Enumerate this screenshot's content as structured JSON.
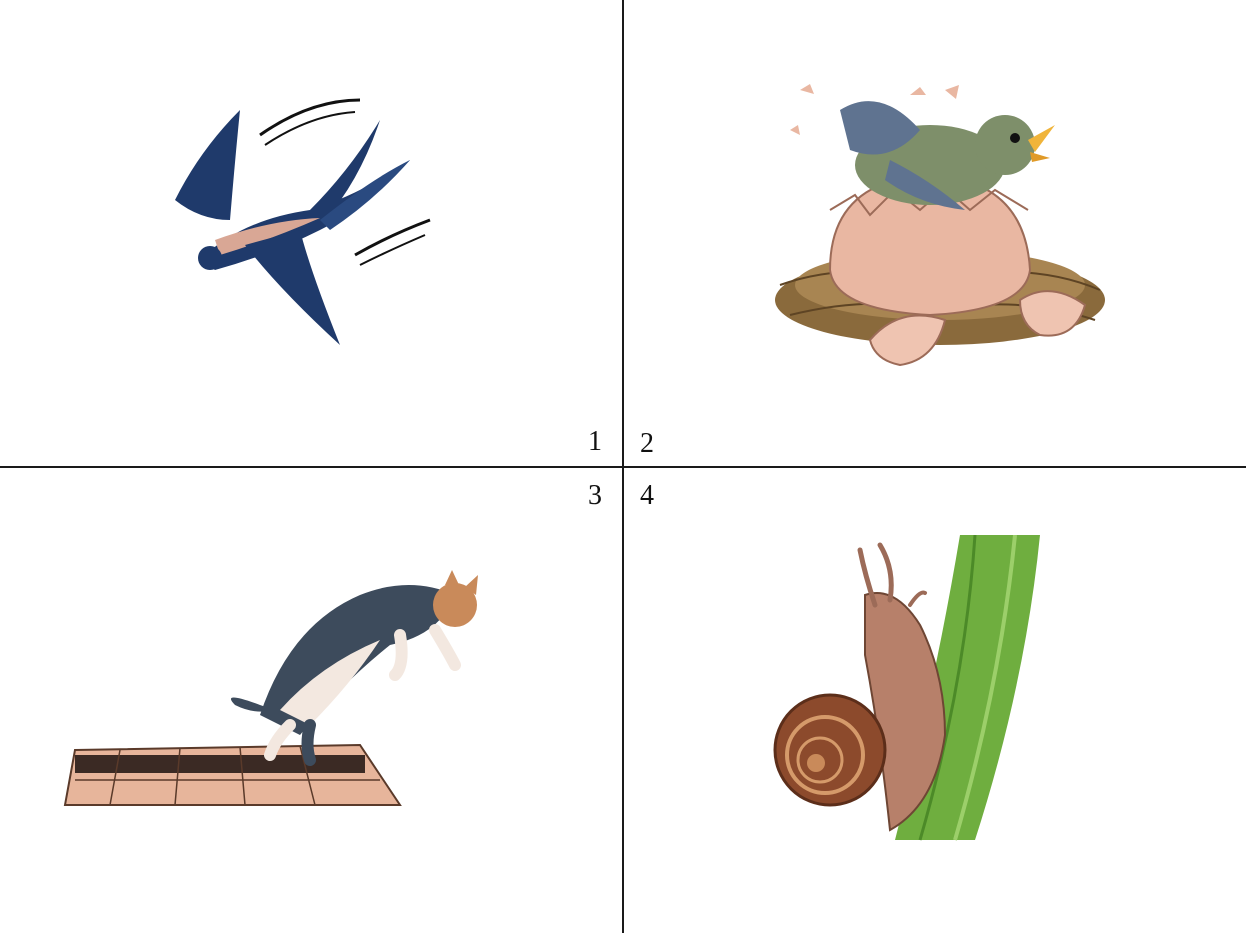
{
  "panels": [
    {
      "number": "1",
      "icon": "swallow-flying-icon"
    },
    {
      "number": "2",
      "icon": "bird-hatching-icon"
    },
    {
      "number": "3",
      "icon": "cat-jumping-icon"
    },
    {
      "number": "4",
      "icon": "snail-on-stem-icon"
    }
  ],
  "colors": {
    "divider": "#1a1a1a",
    "swallow": "#1f3a6b",
    "eggshell": "#e9b7a2",
    "nest": "#8a6a3c",
    "cat": "#3d4b5c",
    "floor": "#e7b59b",
    "stem": "#6fae3f",
    "snail_shell": "#8c4a2c"
  }
}
